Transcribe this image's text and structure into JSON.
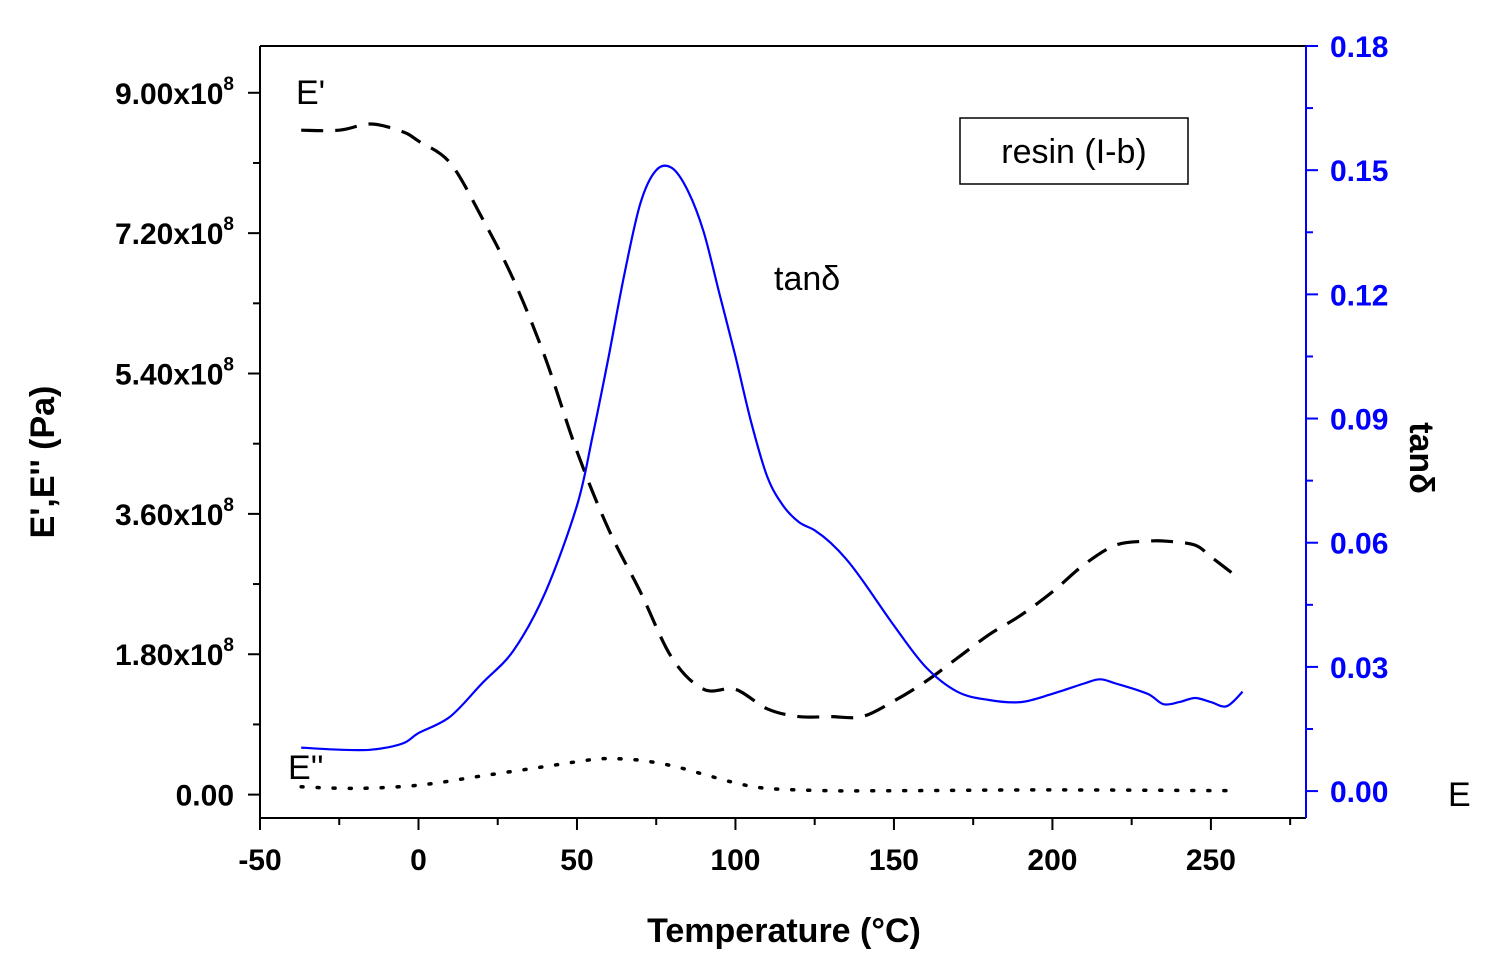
{
  "chart_data": {
    "type": "line",
    "xlabel": "Temperature (°C)",
    "ylabel_left": "E',E'' (Pa)",
    "ylabel_right": "tanδ",
    "right_edge_label": "E",
    "xlim": [
      -50,
      280
    ],
    "ylim_left": [
      -30000000,
      960000000
    ],
    "ylim_right": [
      -0.0065,
      0.18
    ],
    "x_ticks": [
      "-50",
      "0",
      "50",
      "100",
      "150",
      "200",
      "250"
    ],
    "x_tick_values": [
      -50,
      0,
      50,
      100,
      150,
      200,
      250
    ],
    "y_left_ticks": [
      {
        "value": 0,
        "mant": "0.00",
        "exp": ""
      },
      {
        "value": 180000000,
        "mant": "1.80x10",
        "exp": "8"
      },
      {
        "value": 360000000,
        "mant": "3.60x10",
        "exp": "8"
      },
      {
        "value": 540000000,
        "mant": "5.40x10",
        "exp": "8"
      },
      {
        "value": 720000000,
        "mant": "7.20x10",
        "exp": "8"
      },
      {
        "value": 900000000,
        "mant": "9.00x10",
        "exp": "8"
      }
    ],
    "y_right_ticks": [
      {
        "value": 0.0,
        "label": "0.00"
      },
      {
        "value": 0.03,
        "label": "0.03"
      },
      {
        "value": 0.06,
        "label": "0.06"
      },
      {
        "value": 0.09,
        "label": "0.09"
      },
      {
        "value": 0.12,
        "label": "0.12"
      },
      {
        "value": 0.15,
        "label": "0.15"
      },
      {
        "value": 0.18,
        "label": "0.18"
      }
    ],
    "legend_box": "resin (I-b)",
    "annotations": {
      "e_prime": "E'",
      "e_double_prime": "E''",
      "tan_delta": "tanδ"
    },
    "colors": {
      "e_prime": "#000000",
      "e_double_prime": "#000000",
      "tan_delta": "#0000ff",
      "right_axis": "#0000ff"
    },
    "series": [
      {
        "key": "e_prime",
        "axis": "left",
        "style": "dashed",
        "x": [
          -37,
          -25,
          -15,
          -5,
          0,
          10,
          20,
          30,
          40,
          50,
          60,
          70,
          80,
          90,
          100,
          110,
          120,
          130,
          140,
          150,
          160,
          170,
          180,
          190,
          200,
          210,
          220,
          230,
          236,
          245,
          250,
          258
        ],
        "y": [
          852000000.0,
          852000000.0,
          860000000.0,
          850000000.0,
          838000000.0,
          810000000.0,
          740000000.0,
          660000000.0,
          560000000.0,
          440000000.0,
          340000000.0,
          260000000.0,
          175000000.0,
          135000000.0,
          135000000.0,
          110000000.0,
          100000000.0,
          100000000.0,
          100000000.0,
          120000000.0,
          145000000.0,
          175000000.0,
          205000000.0,
          230000000.0,
          260000000.0,
          295000000.0,
          320000000.0,
          325000000.0,
          325000000.0,
          320000000.0,
          305000000.0,
          280000000.0
        ]
      },
      {
        "key": "e_double_prime",
        "axis": "left",
        "style": "dotted",
        "x": [
          -37,
          -20,
          0,
          20,
          40,
          55,
          62,
          70,
          80,
          90,
          100,
          110,
          130,
          150,
          200,
          258
        ],
        "y": [
          10000000.0,
          8000000.0,
          12000000.0,
          24000000.0,
          36000000.0,
          45000000.0,
          46000000.0,
          44000000.0,
          37000000.0,
          26000000.0,
          15000000.0,
          8000000.0,
          5000000.0,
          5000000.0,
          6000000.0,
          5000000.0
        ]
      },
      {
        "key": "tan_delta",
        "axis": "right",
        "style": "solid",
        "x": [
          -37,
          -25,
          -15,
          -5,
          0,
          10,
          20,
          30,
          40,
          50,
          55,
          60,
          65,
          70,
          75,
          80,
          85,
          90,
          95,
          100,
          105,
          110,
          115,
          120,
          125,
          130,
          135,
          140,
          150,
          160,
          170,
          180,
          190,
          200,
          210,
          215,
          220,
          230,
          235,
          240,
          245,
          250,
          255,
          260
        ],
        "y": [
          0.0105,
          0.01,
          0.01,
          0.0115,
          0.014,
          0.018,
          0.026,
          0.034,
          0.048,
          0.069,
          0.086,
          0.105,
          0.125,
          0.142,
          0.15,
          0.1505,
          0.145,
          0.135,
          0.12,
          0.105,
          0.089,
          0.076,
          0.069,
          0.065,
          0.063,
          0.06,
          0.056,
          0.051,
          0.04,
          0.03,
          0.024,
          0.022,
          0.0215,
          0.0235,
          0.026,
          0.027,
          0.026,
          0.0235,
          0.021,
          0.0215,
          0.0225,
          0.0215,
          0.0205,
          0.024
        ]
      }
    ]
  }
}
